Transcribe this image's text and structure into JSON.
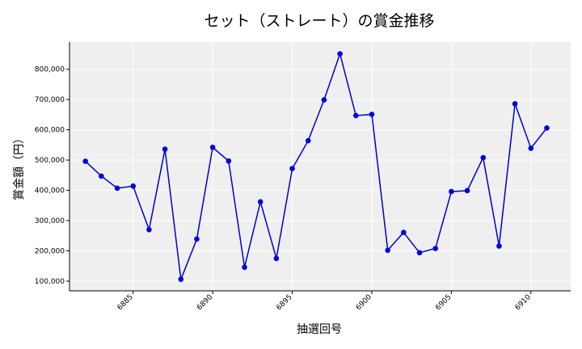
{
  "chart_data": {
    "type": "line",
    "title": "セット（ストレート）の賞金推移",
    "xlabel": "抽選回号",
    "ylabel": "賞金額（円）",
    "xlim": [
      6881,
      6912.5
    ],
    "ylim": [
      68000,
      890000
    ],
    "xticks": [
      6885,
      6890,
      6895,
      6900,
      6905,
      6910
    ],
    "yticks": [
      100000,
      200000,
      300000,
      400000,
      500000,
      600000,
      700000,
      800000
    ],
    "ytick_labels": [
      "100,000",
      "200,000",
      "300,000",
      "400,000",
      "500,000",
      "600,000",
      "700,000",
      "800,000"
    ],
    "grid": true,
    "line_color": "#0000cc",
    "marker_color": "#0000dd",
    "plot_background": "#efefef",
    "series": [
      {
        "x": [
          6882,
          6883,
          6884,
          6885,
          6886,
          6887,
          6888,
          6889,
          6890,
          6891,
          6892,
          6893,
          6894,
          6895,
          6896,
          6897,
          6898,
          6899,
          6900,
          6901,
          6902,
          6903,
          6904,
          6905,
          6906,
          6907,
          6908,
          6909,
          6910,
          6911
        ],
        "values": [
          496000,
          447000,
          407000,
          414000,
          270000,
          536000,
          106000,
          239000,
          542000,
          497000,
          146000,
          362000,
          175000,
          472000,
          564000,
          699000,
          851000,
          647000,
          651000,
          202000,
          261000,
          194000,
          208000,
          396000,
          399000,
          508000,
          216000,
          686000,
          539000,
          606000
        ]
      }
    ]
  }
}
